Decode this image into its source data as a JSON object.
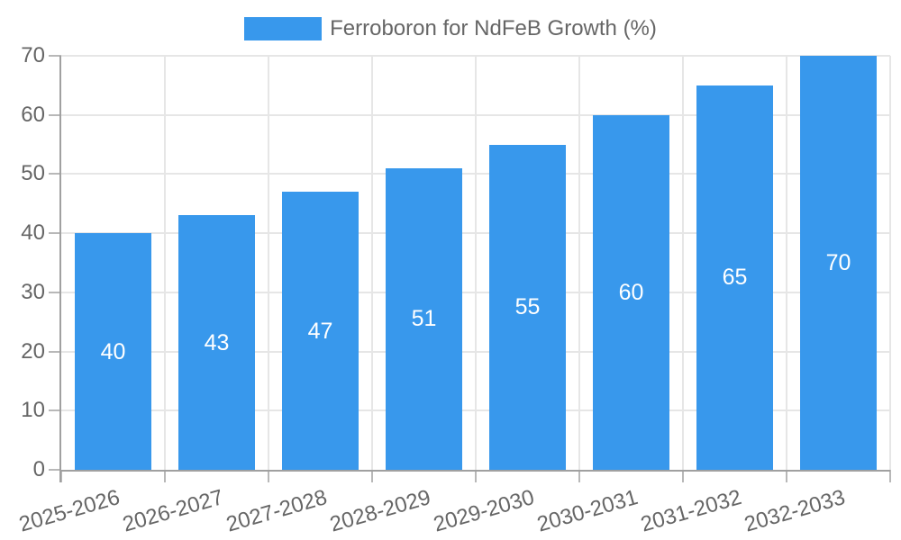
{
  "legend": {
    "label": "Ferroboron for NdFeB Growth (%)"
  },
  "chart_data": {
    "type": "bar",
    "title": "Ferroboron for NdFeB Growth (%)",
    "series_name": "Ferroboron for NdFeB Growth (%)",
    "categories": [
      "2025-2026",
      "2026-2027",
      "2027-2028",
      "2028-2029",
      "2029-2030",
      "2030-2031",
      "2031-2032",
      "2032-2033"
    ],
    "values": [
      40,
      43,
      47,
      51,
      55,
      60,
      65,
      70
    ],
    "yticks": [
      0,
      10,
      20,
      30,
      40,
      50,
      60,
      70
    ],
    "ylim": [
      0,
      70
    ],
    "xlabel": "",
    "ylabel": "",
    "grid": true,
    "legend_position": "top",
    "value_labels": "inside-center",
    "x_tick_rotation_deg": -16,
    "colors": {
      "bar": "#3898ec",
      "axis_text": "#666666",
      "grid": "#e6e6e6",
      "tick": "#b8b8b8",
      "axis_line": "#a0a0a0",
      "value_label": "#ffffff",
      "legend_text": "#666666"
    }
  }
}
